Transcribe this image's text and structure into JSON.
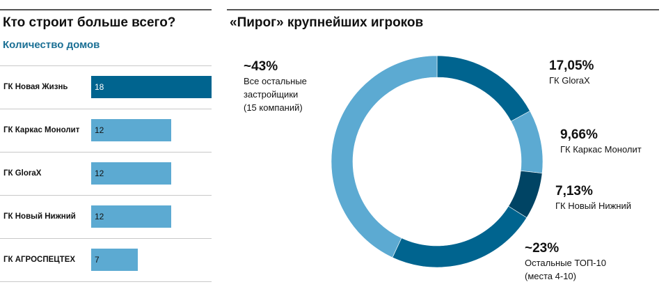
{
  "left_title": "Кто строит больше всего?",
  "left_subtitle": "Количество домов",
  "right_title": "«Пирог» крупнейших игроков",
  "colors": {
    "dark": "#00648f",
    "light": "#5caad2",
    "darkest": "#004464",
    "subtitle": "#1a6f94"
  },
  "chart_data": [
    {
      "type": "bar",
      "orientation": "horizontal",
      "categories": [
        "ГК Новая Жизнь",
        "ГК Каркас Монолит",
        "ГК GloraX",
        "ГК Новый Нижний",
        "ГК АГРОСПЕЦТЕХ"
      ],
      "values": [
        18,
        12,
        12,
        12,
        7
      ],
      "value_labels": [
        "18",
        "12",
        "12",
        "12",
        "7"
      ],
      "bar_colors": [
        "#00648f",
        "#5caad2",
        "#5caad2",
        "#5caad2",
        "#5caad2"
      ],
      "xlim": [
        0,
        18
      ],
      "grid": false
    },
    {
      "type": "pie",
      "donut": true,
      "slices": [
        {
          "pct_label": "17,05%",
          "name_lines": [
            "ГК GloraX"
          ],
          "value": 17.05,
          "color": "#00648f"
        },
        {
          "pct_label": "9,66%",
          "name_lines": [
            "ГК Каркас Монолит"
          ],
          "value": 9.66,
          "color": "#5caad2"
        },
        {
          "pct_label": "7,13%",
          "name_lines": [
            "ГК Новый Нижний"
          ],
          "value": 7.13,
          "color": "#004464"
        },
        {
          "pct_label": "~23%",
          "name_lines": [
            "Остальные ТОП-10",
            "(места 4-10)"
          ],
          "value": 23,
          "color": "#00648f"
        },
        {
          "pct_label": "~43%",
          "name_lines": [
            "Все остальные",
            "застройщики",
            "(15 компаний)"
          ],
          "value": 43,
          "color": "#5caad2"
        }
      ]
    }
  ]
}
